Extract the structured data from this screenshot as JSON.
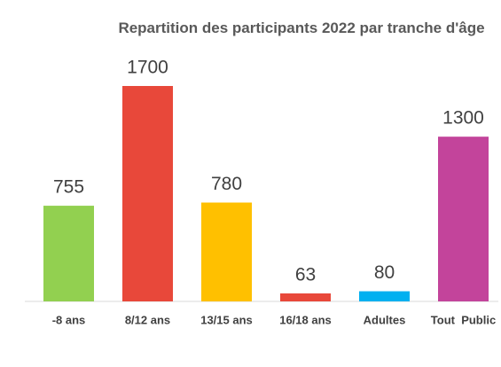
{
  "chart_data": {
    "type": "bar",
    "title": "Repartition des participants 2022 par tranche d'âge",
    "categories": [
      "-8 ans",
      "8/12 ans",
      "13/15 ans",
      "16/18 ans",
      "Adultes",
      "Tout  Public"
    ],
    "values": [
      755,
      1700,
      780,
      63,
      80,
      1300
    ],
    "colors": [
      "#92d050",
      "#e8483a",
      "#ffc000",
      "#e8483a",
      "#00b0f0",
      "#c3449b"
    ]
  }
}
